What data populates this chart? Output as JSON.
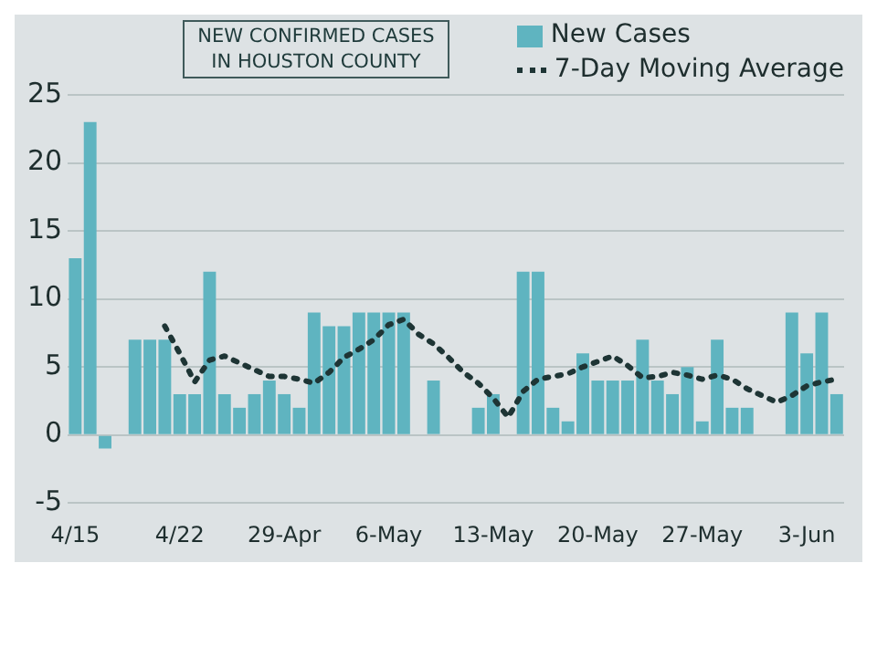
{
  "chart_data": {
    "type": "bar",
    "title": "NEW CONFIRMED CASES IN HOUSTON COUNTY",
    "categories": [
      "4/15",
      null,
      null,
      null,
      null,
      null,
      null,
      "4/22",
      null,
      null,
      null,
      null,
      null,
      null,
      "29-Apr",
      null,
      null,
      null,
      null,
      null,
      null,
      "6-May",
      null,
      null,
      null,
      null,
      null,
      null,
      "13-May",
      null,
      null,
      null,
      null,
      null,
      null,
      "20-May",
      null,
      null,
      null,
      null,
      null,
      null,
      "27-May",
      null,
      null,
      null,
      null,
      null,
      null,
      "3-Jun",
      null,
      null
    ],
    "series": [
      {
        "name": "New Cases",
        "color": "#5fb4c0",
        "values": [
          13,
          23,
          -1,
          0,
          7,
          7,
          7,
          3,
          3,
          12,
          3,
          2,
          3,
          4,
          3,
          2,
          9,
          8,
          8,
          9,
          9,
          9,
          9,
          0,
          4,
          0,
          0,
          2,
          3,
          0,
          12,
          12,
          2,
          1,
          6,
          4,
          4,
          4,
          7,
          4,
          3,
          5,
          1,
          7,
          2,
          2,
          0,
          0,
          9,
          6,
          9,
          3
        ]
      },
      {
        "name": "7-Day Moving Average",
        "type": "line",
        "color": "#1e3535",
        "line_style": "dotted",
        "values": [
          null,
          null,
          null,
          null,
          null,
          null,
          8,
          6,
          3.9,
          5.5,
          5.8,
          5.3,
          4.8,
          4.3,
          4.3,
          4.1,
          3.8,
          4.6,
          5.7,
          6.3,
          7,
          8.1,
          8.5,
          7.4,
          6.7,
          5.7,
          4.6,
          3.8,
          2.7,
          1.3,
          3.2,
          4.1,
          4.3,
          4.5,
          5,
          5.4,
          5.8,
          5.1,
          4.2,
          4.3,
          4.6,
          4.4,
          4.1,
          4.4,
          4.1,
          3.4,
          2.9,
          2.4,
          2.9,
          3.6,
          3.9,
          4.1
        ]
      }
    ],
    "ylim": [
      -5,
      25
    ],
    "yticks": [
      -5,
      0,
      5,
      10,
      15,
      20,
      25
    ],
    "grid": "y",
    "legend": "top right"
  }
}
